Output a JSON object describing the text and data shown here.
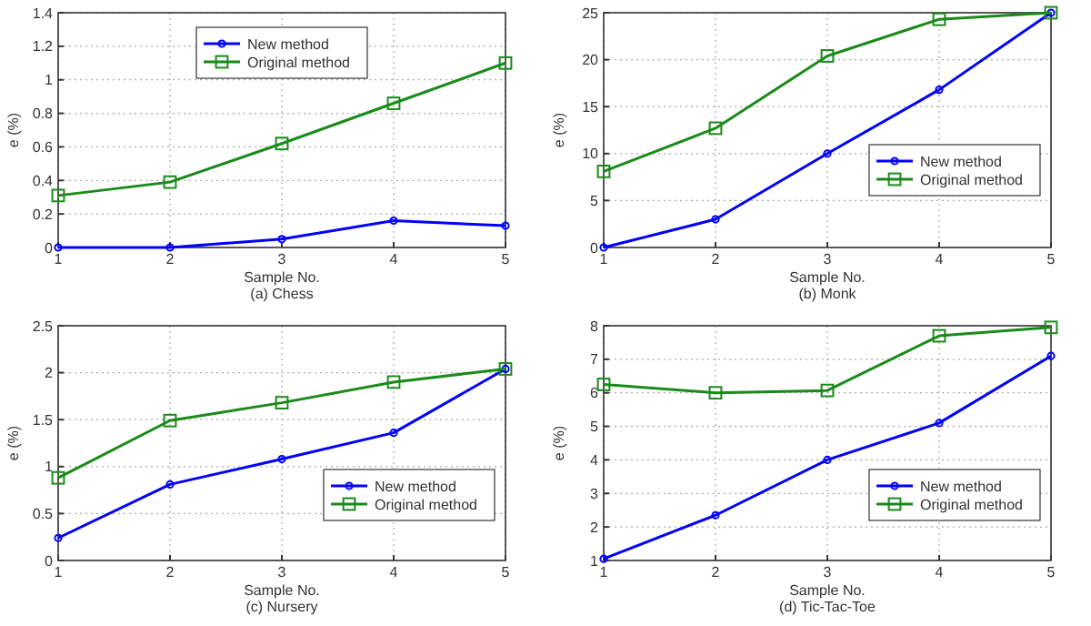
{
  "chart_data": [
    {
      "type": "line",
      "xlabel": "Sample No.",
      "ylabel": "e (%)",
      "annotations": [
        "(a) Chess"
      ],
      "x": [
        1,
        2,
        3,
        4,
        5
      ],
      "xlim": [
        1,
        5
      ],
      "xticks": [
        1,
        2,
        3,
        4,
        5
      ],
      "ylim": [
        0,
        1.4
      ],
      "yticks": [
        0,
        0.2,
        0.4,
        0.6,
        0.8,
        1,
        1.2,
        1.4
      ],
      "grid": true,
      "legend": "top",
      "series": [
        {
          "name": "New method",
          "color": "#0000ff",
          "marker": "circle",
          "values": [
            0,
            0,
            0.05,
            0.16,
            0.13
          ]
        },
        {
          "name": "Original method",
          "color": "#1a8a1a",
          "marker": "square",
          "values": [
            0.31,
            0.39,
            0.62,
            0.86,
            1.1
          ]
        }
      ]
    },
    {
      "type": "line",
      "xlabel": "Sample No.",
      "ylabel": "e (%)",
      "annotations": [
        "(b) Monk"
      ],
      "x": [
        1,
        2,
        3,
        4,
        5
      ],
      "xlim": [
        1,
        5
      ],
      "xticks": [
        1,
        2,
        3,
        4,
        5
      ],
      "ylim": [
        0,
        25
      ],
      "yticks": [
        0,
        5,
        10,
        15,
        20,
        25
      ],
      "grid": true,
      "legend": "right",
      "series": [
        {
          "name": "New method",
          "color": "#0000ff",
          "marker": "circle",
          "values": [
            0,
            3,
            10,
            16.8,
            25
          ]
        },
        {
          "name": "Original method",
          "color": "#1a8a1a",
          "marker": "square",
          "values": [
            8.1,
            12.7,
            20.4,
            24.3,
            25
          ]
        }
      ]
    },
    {
      "type": "line",
      "xlabel": "Sample No.",
      "ylabel": "e (%)",
      "annotations": [
        "(c) Nursery"
      ],
      "x": [
        1,
        2,
        3,
        4,
        5
      ],
      "xlim": [
        1,
        5
      ],
      "xticks": [
        1,
        2,
        3,
        4,
        5
      ],
      "ylim": [
        0,
        2.5
      ],
      "yticks": [
        0,
        0.5,
        1,
        1.5,
        2,
        2.5
      ],
      "grid": true,
      "legend": "bottom right",
      "series": [
        {
          "name": "New method",
          "color": "#0000ff",
          "marker": "circle",
          "values": [
            0.24,
            0.81,
            1.08,
            1.36,
            2.04
          ]
        },
        {
          "name": "Original method",
          "color": "#1a8a1a",
          "marker": "square",
          "values": [
            0.88,
            1.49,
            1.68,
            1.9,
            2.04
          ]
        }
      ]
    },
    {
      "type": "line",
      "xlabel": "Sample No.",
      "ylabel": "e (%)",
      "annotations": [
        "(d) Tic-Tac-Toe"
      ],
      "x": [
        1,
        2,
        3,
        4,
        5
      ],
      "xlim": [
        1,
        5
      ],
      "xticks": [
        1,
        2,
        3,
        4,
        5
      ],
      "ylim": [
        1,
        8
      ],
      "yticks": [
        1,
        2,
        3,
        4,
        5,
        6,
        7,
        8
      ],
      "grid": true,
      "legend": "bottom right",
      "series": [
        {
          "name": "New method",
          "color": "#0000ff",
          "marker": "circle",
          "values": [
            1.05,
            2.35,
            4,
            5.1,
            7.1
          ]
        },
        {
          "name": "Original method",
          "color": "#1a8a1a",
          "marker": "square",
          "values": [
            6.25,
            6,
            6.07,
            7.7,
            7.95
          ]
        }
      ]
    }
  ]
}
